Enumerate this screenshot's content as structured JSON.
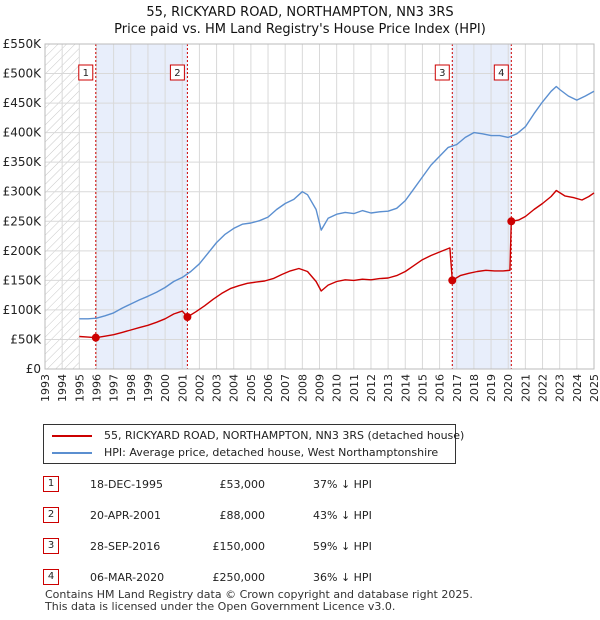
{
  "title_line1": "55, RICKYARD ROAD, NORTHAMPTON, NN3 3RS",
  "title_line2": "Price paid vs. HM Land Registry's House Price Index (HPI)",
  "chart_data": {
    "type": "line",
    "title": "55, RICKYARD ROAD, NORTHAMPTON, NN3 3RS — Price paid vs. HM Land Registry's House Price Index (HPI)",
    "xlabel": "",
    "ylabel": "",
    "xlim": [
      1993,
      2025
    ],
    "ylim": [
      0,
      550000
    ],
    "x_ticks": [
      1993,
      1994,
      1995,
      1996,
      1997,
      1998,
      1999,
      2000,
      2001,
      2002,
      2003,
      2004,
      2005,
      2006,
      2007,
      2008,
      2009,
      2010,
      2011,
      2012,
      2013,
      2014,
      2015,
      2016,
      2017,
      2018,
      2019,
      2020,
      2021,
      2022,
      2023,
      2024,
      2025
    ],
    "x_tick_labels": [
      "1993",
      "1994",
      "1995",
      "1996",
      "1997",
      "1998",
      "1999",
      "2000",
      "2001",
      "2002",
      "2003",
      "2004",
      "2005",
      "2006",
      "2007",
      "2008",
      "2009",
      "2010",
      "2011",
      "2012",
      "2013",
      "2014",
      "2015",
      "2016",
      "2017",
      "2018",
      "2019",
      "2020",
      "2021",
      "2022",
      "2023",
      "2024",
      "2025"
    ],
    "y_ticks": [
      0,
      50000,
      100000,
      150000,
      200000,
      250000,
      300000,
      350000,
      400000,
      450000,
      500000,
      550000
    ],
    "y_tick_labels": [
      "£0",
      "£50K",
      "£100K",
      "£150K",
      "£200K",
      "£250K",
      "£300K",
      "£350K",
      "£400K",
      "£450K",
      "£500K",
      "£550K"
    ],
    "grid": true,
    "data_start_year": 1995,
    "shaded_periods": [
      [
        1995.96,
        2001.3
      ],
      [
        2016.74,
        2020.18
      ]
    ],
    "series": [
      {
        "name": "55, RICKYARD ROAD, NORTHAMPTON, NN3 3RS (detached house)",
        "color": "#cc0000",
        "x": [
          1995.0,
          1995.5,
          1995.96,
          1996.5,
          1997.0,
          1997.5,
          1998.0,
          1998.5,
          1999.0,
          1999.5,
          2000.0,
          2000.5,
          2001.0,
          2001.3,
          2001.8,
          2002.3,
          2002.8,
          2003.3,
          2003.8,
          2004.3,
          2004.8,
          2005.3,
          2005.8,
          2006.3,
          2006.8,
          2007.3,
          2007.8,
          2008.3,
          2008.8,
          2009.1,
          2009.5,
          2010.0,
          2010.5,
          2011.0,
          2011.5,
          2012.0,
          2012.5,
          2013.0,
          2013.5,
          2014.0,
          2014.5,
          2015.0,
          2015.5,
          2016.0,
          2016.6,
          2016.74,
          2017.2,
          2017.7,
          2018.2,
          2018.7,
          2019.2,
          2019.7,
          2020.1,
          2020.18,
          2020.6,
          2021.0,
          2021.5,
          2022.0,
          2022.5,
          2022.8,
          2023.3,
          2023.8,
          2024.3,
          2024.7,
          2025.0
        ],
        "y": [
          55000,
          54000,
          53000,
          55500,
          58000,
          62000,
          66000,
          70000,
          74000,
          79000,
          85000,
          93000,
          98000,
          88000,
          97000,
          107000,
          118000,
          128000,
          136000,
          141000,
          145000,
          147000,
          149000,
          153000,
          160000,
          166000,
          170000,
          165000,
          148000,
          132000,
          142000,
          148000,
          151000,
          150000,
          152000,
          151000,
          153000,
          154000,
          158000,
          165000,
          175000,
          185000,
          192000,
          198000,
          205000,
          150000,
          158000,
          162000,
          165000,
          167000,
          166000,
          166000,
          167000,
          250000,
          252000,
          258000,
          270000,
          280000,
          292000,
          302000,
          293000,
          290000,
          286000,
          292000,
          298000
        ]
      },
      {
        "name": "HPI: Average price, detached house, West Northamptonshire",
        "color": "#5b8fd0",
        "x": [
          1995.0,
          1995.5,
          1996.0,
          1996.5,
          1997.0,
          1997.5,
          1998.0,
          1998.5,
          1999.0,
          1999.5,
          2000.0,
          2000.5,
          2001.0,
          2001.5,
          2002.0,
          2002.5,
          2003.0,
          2003.5,
          2004.0,
          2004.5,
          2005.0,
          2005.5,
          2006.0,
          2006.5,
          2007.0,
          2007.5,
          2008.0,
          2008.3,
          2008.8,
          2009.1,
          2009.5,
          2010.0,
          2010.5,
          2011.0,
          2011.5,
          2012.0,
          2012.5,
          2013.0,
          2013.5,
          2014.0,
          2014.5,
          2015.0,
          2015.5,
          2016.0,
          2016.5,
          2017.0,
          2017.5,
          2018.0,
          2018.5,
          2019.0,
          2019.5,
          2020.0,
          2020.5,
          2021.0,
          2021.5,
          2022.0,
          2022.5,
          2022.8,
          2023.0,
          2023.5,
          2024.0,
          2024.5,
          2025.0
        ],
        "y": [
          85000,
          85000,
          86000,
          90000,
          95000,
          103000,
          110000,
          117000,
          123000,
          130000,
          138000,
          148000,
          155000,
          165000,
          178000,
          196000,
          214000,
          228000,
          238000,
          245000,
          247000,
          251000,
          257000,
          270000,
          280000,
          287000,
          300000,
          295000,
          270000,
          235000,
          255000,
          262000,
          265000,
          263000,
          268000,
          264000,
          266000,
          267000,
          272000,
          285000,
          305000,
          325000,
          345000,
          360000,
          375000,
          380000,
          392000,
          400000,
          398000,
          395000,
          395000,
          392000,
          398000,
          410000,
          432000,
          452000,
          470000,
          478000,
          473000,
          462000,
          455000,
          462000,
          470000
        ]
      }
    ],
    "markers": [
      {
        "label": "1",
        "x": 1995.96,
        "y": 53000
      },
      {
        "label": "2",
        "x": 2001.3,
        "y": 88000
      },
      {
        "label": "3",
        "x": 2016.74,
        "y": 150000
      },
      {
        "label": "4",
        "x": 2020.18,
        "y": 250000
      }
    ]
  },
  "legend": [
    {
      "label": "55, RICKYARD ROAD, NORTHAMPTON, NN3 3RS (detached house)",
      "color": "#cc0000"
    },
    {
      "label": "HPI: Average price, detached house, West Northamptonshire",
      "color": "#5b8fd0"
    }
  ],
  "sales": [
    {
      "num": "1",
      "date": "18-DEC-1995",
      "price": "£53,000",
      "hpi": "37% ↓ HPI"
    },
    {
      "num": "2",
      "date": "20-APR-2001",
      "price": "£88,000",
      "hpi": "43% ↓ HPI"
    },
    {
      "num": "3",
      "date": "28-SEP-2016",
      "price": "£150,000",
      "hpi": "59% ↓ HPI"
    },
    {
      "num": "4",
      "date": "06-MAR-2020",
      "price": "£250,000",
      "hpi": "36% ↓ HPI"
    }
  ],
  "footer": {
    "line1": "Contains HM Land Registry data © Crown copyright and database right 2025.",
    "line2": "This data is licensed under the Open Government Licence v3.0."
  }
}
